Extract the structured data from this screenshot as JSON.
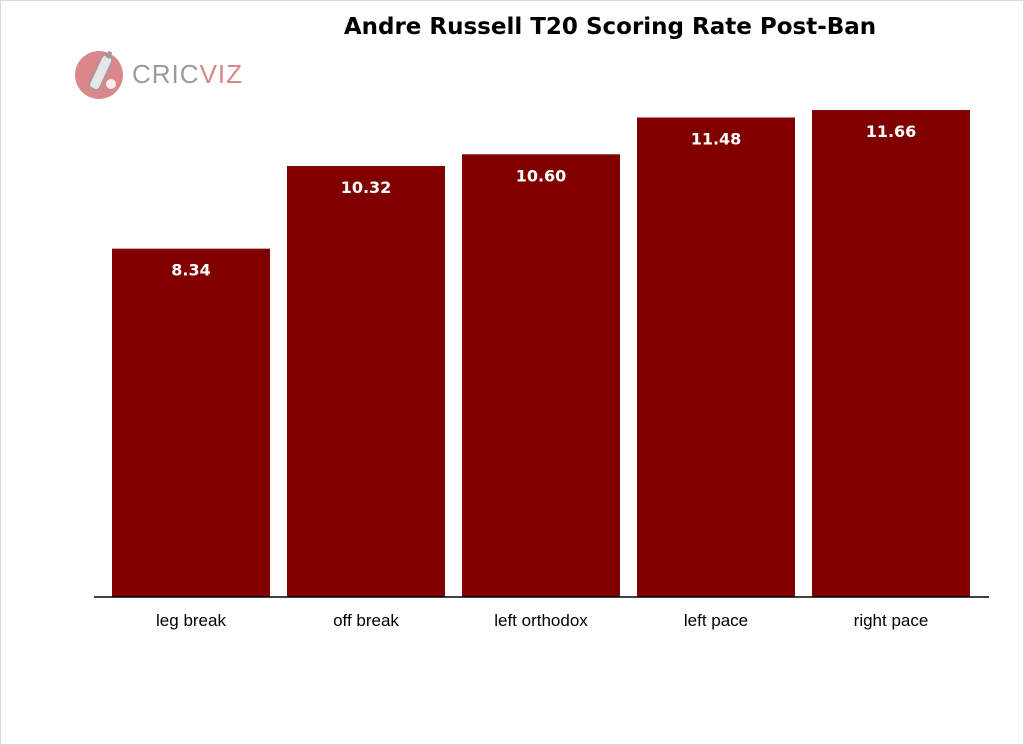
{
  "logo": {
    "text_part1": "CRIC",
    "text_part2": "VIZ",
    "icon": "cricket-bat-ball-icon"
  },
  "chart_data": {
    "type": "bar",
    "title": "Andre Russell T20 Scoring Rate Post-Ban",
    "xlabel": "",
    "ylabel": "",
    "categories": [
      "leg break",
      "off break",
      "left orthodox",
      "left pace",
      "right pace"
    ],
    "values": [
      8.34,
      10.32,
      10.6,
      11.48,
      11.66
    ],
    "value_labels": [
      "8.34",
      "10.32",
      "10.60",
      "11.48",
      "11.66"
    ],
    "ylim": [
      0,
      11.9
    ],
    "bar_color": "#800000",
    "grid": false,
    "legend": "none"
  }
}
